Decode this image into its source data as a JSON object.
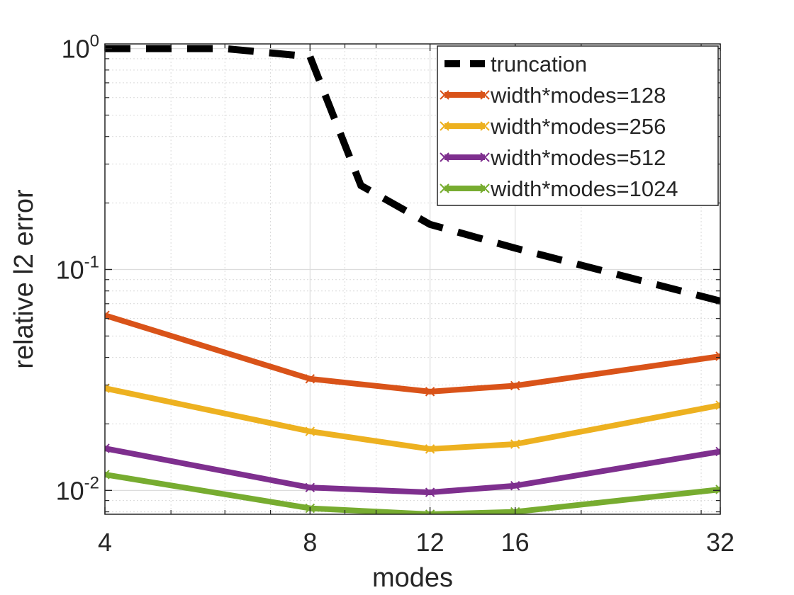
{
  "chart_data": {
    "type": "line",
    "xscale": "log2",
    "yscale": "log10",
    "xlabel": "modes",
    "ylabel": "relative l2 error",
    "x": [
      4,
      8,
      12,
      16,
      32
    ],
    "xlim": [
      4,
      32
    ],
    "ylim": [
      0.0078,
      1.05
    ],
    "xticks": [
      4,
      8,
      12,
      16,
      32
    ],
    "xtick_labels": [
      "4",
      "8",
      "12",
      "16",
      "32"
    ],
    "yticks": [
      {
        "value": 1,
        "base": "10",
        "exp": "0"
      },
      {
        "value": 0.1,
        "base": "10",
        "exp": "-1"
      },
      {
        "value": 0.01,
        "base": "10",
        "exp": "-2"
      }
    ],
    "grid": true,
    "legend_location": "top-right",
    "series": [
      {
        "name": "truncation",
        "style": "dashed",
        "color": "#000000",
        "marker": "none",
        "points": [
          [
            4,
            1.0
          ],
          [
            6,
            1.0
          ],
          [
            8,
            0.92
          ],
          [
            9.5,
            0.24
          ],
          [
            12,
            0.16
          ],
          [
            16,
            0.125
          ],
          [
            32,
            0.072
          ]
        ]
      },
      {
        "name": "width*modes=128",
        "style": "solid",
        "color": "#D95319",
        "marker": "x",
        "points": [
          [
            4,
            0.062
          ],
          [
            8,
            0.032
          ],
          [
            12,
            0.028
          ],
          [
            16,
            0.0298
          ],
          [
            32,
            0.0405
          ]
        ]
      },
      {
        "name": "width*modes=256",
        "style": "solid",
        "color": "#EDB120",
        "marker": "x",
        "points": [
          [
            4,
            0.029
          ],
          [
            8,
            0.0185
          ],
          [
            12,
            0.0154
          ],
          [
            16,
            0.0162
          ],
          [
            32,
            0.0243
          ]
        ]
      },
      {
        "name": "width*modes=512",
        "style": "solid",
        "color": "#7E2F8E",
        "marker": "x",
        "points": [
          [
            4,
            0.0155
          ],
          [
            8,
            0.0103
          ],
          [
            12,
            0.0098
          ],
          [
            16,
            0.0105
          ],
          [
            32,
            0.015
          ]
        ]
      },
      {
        "name": "width*modes=1024",
        "style": "solid",
        "color": "#77AC30",
        "marker": "x",
        "points": [
          [
            4,
            0.0118
          ],
          [
            8,
            0.0083
          ],
          [
            12,
            0.0078
          ],
          [
            16,
            0.008
          ],
          [
            32,
            0.0101
          ]
        ]
      }
    ]
  }
}
